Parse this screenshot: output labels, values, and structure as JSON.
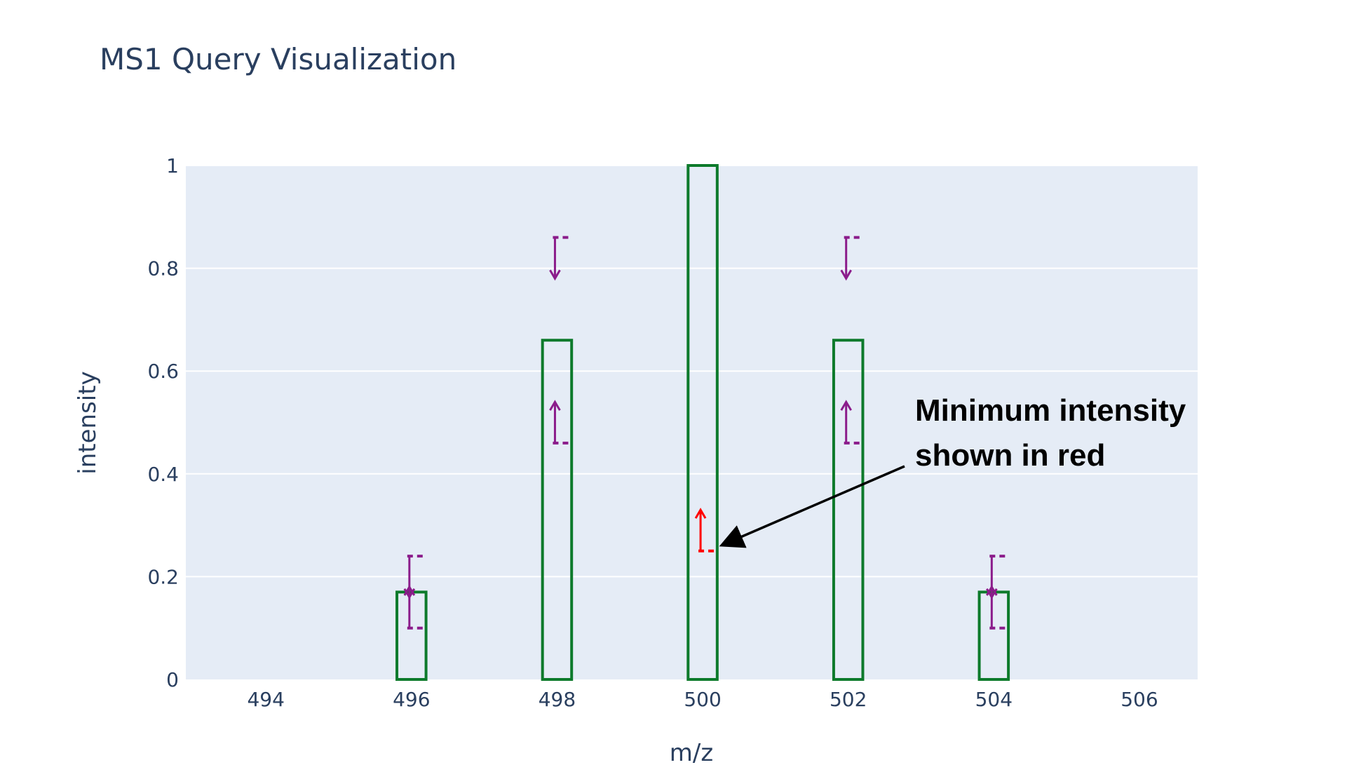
{
  "chart_data": {
    "type": "bar",
    "title": "MS1 Query Visualization",
    "xlabel": "m/z",
    "ylabel": "intensity",
    "xlim": [
      492.9,
      506.8
    ],
    "ylim": [
      0,
      1
    ],
    "x_ticks": [
      494,
      496,
      498,
      500,
      502,
      504,
      506
    ],
    "y_ticks": [
      0,
      0.2,
      0.4,
      0.6,
      0.8,
      1
    ],
    "y_tick_labels": [
      "0",
      "0.2",
      "0.4",
      "0.6",
      "0.8",
      "1"
    ],
    "grid": true,
    "bar_width": 0.4,
    "plot_background": "#e5ecf6",
    "bar_outline_color": "#0d7a2b",
    "range_color": "#8b1c8b",
    "minimum_color": "#ff0000",
    "series": [
      {
        "role": "query peaks",
        "x": [
          496,
          498,
          500,
          502,
          504
        ],
        "values": [
          0.17,
          0.66,
          1.0,
          0.66,
          0.17
        ]
      }
    ],
    "intensity_ranges": [
      {
        "x": 496,
        "min": 0.1,
        "max": 0.24,
        "color": "#8b1c8b"
      },
      {
        "x": 498,
        "min": 0.46,
        "max": 0.86,
        "color": "#8b1c8b"
      },
      {
        "x": 500,
        "min": 0.25,
        "max": null,
        "color": "#ff0000"
      },
      {
        "x": 502,
        "min": 0.46,
        "max": 0.86,
        "color": "#8b1c8b"
      },
      {
        "x": 504,
        "min": 0.1,
        "max": 0.24,
        "color": "#8b1c8b"
      }
    ],
    "annotations": [
      {
        "line1": "Minimum intensity",
        "line2": "shown in red",
        "points_to_x": 500,
        "points_to_y": 0.26
      }
    ]
  }
}
